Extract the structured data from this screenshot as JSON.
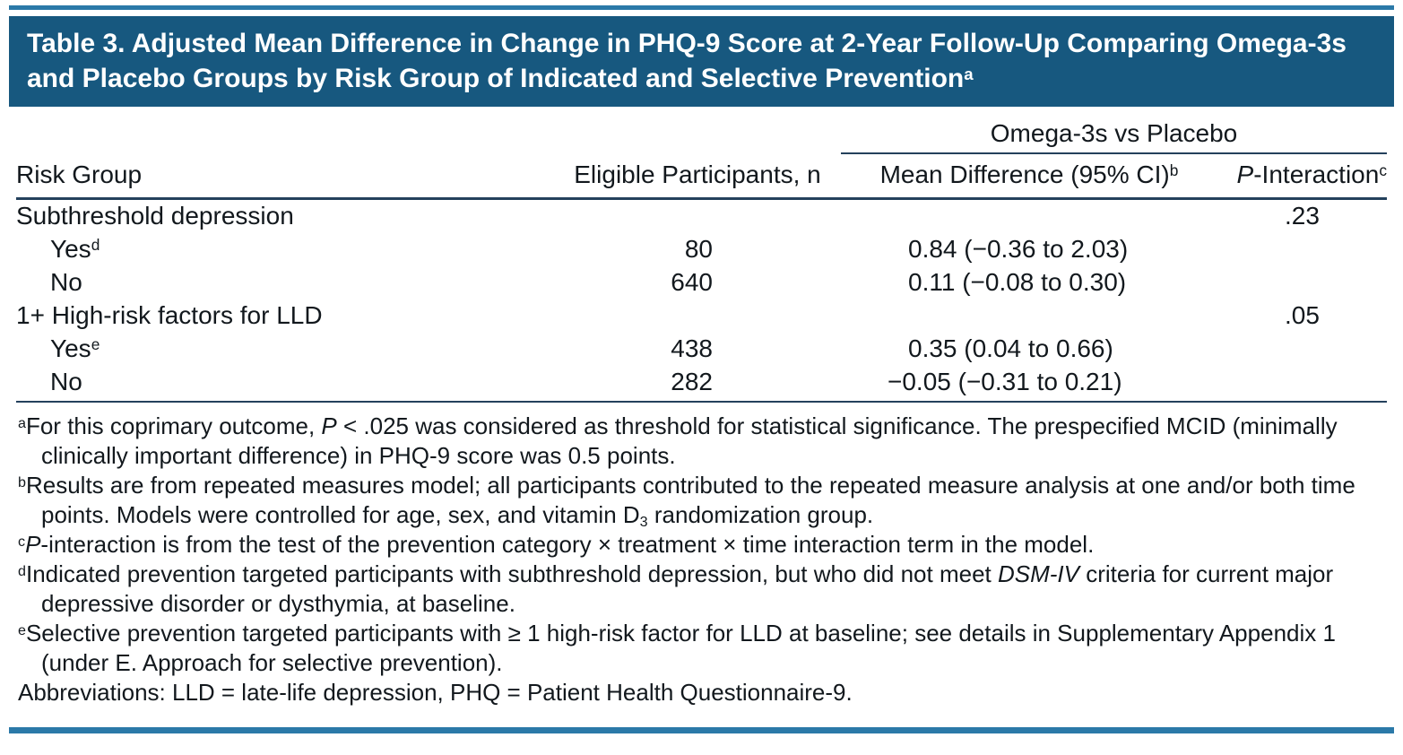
{
  "colors": {
    "title_bar_bg": "#17587F",
    "title_text": "#FFFFFF",
    "accent_rule_blue": "#2B79A8",
    "table_rule_dark": "#24415C",
    "body_text": "#12181D"
  },
  "title": {
    "segments": [
      {
        "t": "Table 3. Adjusted Mean Difference in Change in PHQ-9 Score at 2-Year Follow-Up Comparing Omega-3s and Placebo Groups by Risk Group of Indicated and Selective Prevention"
      },
      {
        "t": "a",
        "s": "sup"
      }
    ]
  },
  "table": {
    "spanner": "Omega-3s vs Placebo",
    "columns": {
      "risk_group": "Risk Group",
      "eligible": "Eligible Participants, n",
      "mean_diff_segments": [
        {
          "t": "Mean Difference (95% CI)"
        },
        {
          "t": "b",
          "s": "sup"
        }
      ],
      "p_interaction_segments": [
        {
          "t": "P",
          "s": "i"
        },
        {
          "t": "-Interaction"
        },
        {
          "t": "c",
          "s": "sup"
        }
      ]
    },
    "rows": [
      {
        "label": "Subthreshold depression",
        "sup": "",
        "n": "",
        "mean_diff": "",
        "p": ".23"
      },
      {
        "label": "Yes",
        "sup": "d",
        "n": "80",
        "mean_diff": "0.84 (−0.36 to 2.03)",
        "p": ""
      },
      {
        "label": "No",
        "sup": "",
        "n": "640",
        "mean_diff": "0.11 (−0.08 to 0.30)",
        "p": ""
      },
      {
        "label": "1+ High-risk factors for LLD",
        "sup": "",
        "n": "",
        "mean_diff": "",
        "p": ".05"
      },
      {
        "label": "Yes",
        "sup": "e",
        "n": "438",
        "mean_diff": "0.35 (0.04 to 0.66)",
        "p": ""
      },
      {
        "label": "No",
        "sup": "",
        "n": "282",
        "mean_diff": "−0.05 (−0.31 to 0.21)",
        "p": ""
      }
    ]
  },
  "footnotes": [
    {
      "segments": [
        {
          "t": "a",
          "s": "sup"
        },
        {
          "t": "For this coprimary outcome, "
        },
        {
          "t": "P",
          "s": "i"
        },
        {
          "t": " < .025 was considered as threshold for statistical significance. The prespecified MCID (minimally clinically important difference) in PHQ-9 score was 0.5 points."
        }
      ]
    },
    {
      "segments": [
        {
          "t": "b",
          "s": "sup"
        },
        {
          "t": "Results are from repeated measures model; all participants contributed to the repeated measure analysis at one and/or both time points. Models were controlled for age, sex, and vitamin D"
        },
        {
          "t": "3",
          "s": "sub"
        },
        {
          "t": " randomization group."
        }
      ]
    },
    {
      "segments": [
        {
          "t": "c",
          "s": "sup"
        },
        {
          "t": "P",
          "s": "i"
        },
        {
          "t": "-interaction is from the test of the prevention category × treatment × time interaction term in the model."
        }
      ]
    },
    {
      "segments": [
        {
          "t": "d",
          "s": "sup"
        },
        {
          "t": "Indicated prevention targeted participants with subthreshold depression, but who did not meet "
        },
        {
          "t": "DSM-IV",
          "s": "i"
        },
        {
          "t": " criteria for current major depressive disorder or dysthymia, at baseline."
        }
      ]
    },
    {
      "segments": [
        {
          "t": "e",
          "s": "sup"
        },
        {
          "t": "Selective prevention targeted participants with ≥ 1 high-risk factor for LLD at baseline; see details in Supplementary Appendix 1 (under E. Approach for selective prevention)."
        }
      ]
    },
    {
      "segments": [
        {
          "t": "Abbreviations: LLD = late-life depression, PHQ = Patient Health Questionnaire-9."
        }
      ]
    }
  ]
}
